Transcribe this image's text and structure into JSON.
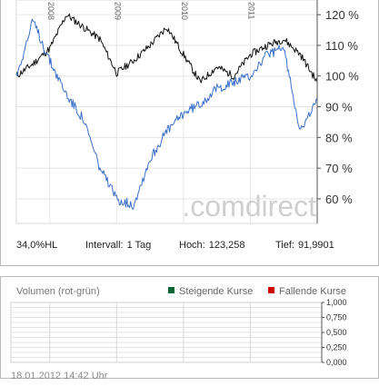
{
  "price_chart": {
    "watermark": ".comdirect",
    "info": {
      "range": "34,0%HL",
      "interval_label": "Intervall:",
      "interval_value": "1 Tag",
      "high_label": "Hoch:",
      "high_value": "123,258",
      "low_label": "Tief:",
      "low_value": "91,9901"
    }
  },
  "volume_chart": {
    "title": "Volumen (rot-grün)",
    "legend_rising": "Steigende Kurse",
    "legend_falling": "Fallende Kurse",
    "colors": {
      "rising": "#006633",
      "falling": "#cc0000"
    }
  },
  "timestamp": "18.01.2012 14:42 Uhr",
  "chart_data": [
    {
      "type": "line",
      "x": [
        "2007-07",
        "2007-10",
        "2008-01",
        "2008-04",
        "2008-07",
        "2008-10",
        "2009-01",
        "2009-04",
        "2009-07",
        "2009-10",
        "2010-01",
        "2010-04",
        "2010-07",
        "2010-10",
        "2011-01",
        "2011-04",
        "2011-07",
        "2011-10",
        "2012-01"
      ],
      "x_tick_labels": [
        "2008",
        "2009",
        "2010",
        "2011"
      ],
      "y_tick_labels": [
        "60 %",
        "70 %",
        "80 %",
        "90 %",
        "100 %",
        "110 %",
        "120 %"
      ],
      "ylim": [
        52,
        123
      ],
      "series": [
        {
          "color": "#111111",
          "values": [
            100,
            104,
            109,
            120,
            116,
            112,
            101,
            105,
            110,
            116,
            107,
            98,
            103,
            100,
            107,
            110,
            112,
            107,
            98
          ]
        },
        {
          "color": "#3a6fc9",
          "values": [
            100,
            118,
            105,
            94,
            86,
            70,
            60,
            58,
            73,
            82,
            88,
            91,
            96,
            98,
            100,
            107,
            109,
            82,
            92
          ]
        }
      ]
    },
    {
      "type": "bar",
      "y_tick_labels": [
        "0,000",
        "0,250",
        "0,500",
        "0,750",
        "1,000"
      ],
      "ylim": [
        0,
        1
      ]
    }
  ]
}
